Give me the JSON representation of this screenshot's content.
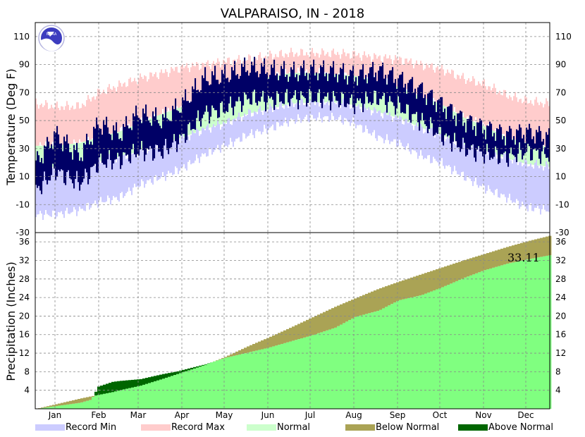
{
  "chart_data": {
    "type": "bar",
    "title": "VALPARAISO, IN - 2018",
    "months": [
      "Jan",
      "Feb",
      "Mar",
      "Apr",
      "May",
      "Jun",
      "Jul",
      "Aug",
      "Sep",
      "Oct",
      "Nov",
      "Dec"
    ],
    "temperature_panel": {
      "ylabel": "Temperature (Deg F)",
      "ylim": [
        -30,
        120
      ],
      "yticks": [
        110,
        90,
        70,
        50,
        30,
        10,
        -10,
        -30
      ],
      "grid": true,
      "series_anchors": {
        "day_of_year": [
          1,
          15,
          32,
          46,
          60,
          74,
          91,
          105,
          121,
          135,
          152,
          166,
          182,
          196,
          213,
          227,
          244,
          258,
          274,
          288,
          305,
          319,
          335,
          349,
          365
        ],
        "record_max": [
          62,
          60,
          60,
          70,
          75,
          80,
          84,
          88,
          90,
          92,
          94,
          96,
          98,
          98,
          98,
          97,
          95,
          94,
          90,
          87,
          80,
          76,
          68,
          64,
          62
        ],
        "normal_high": [
          32,
          32,
          34,
          38,
          42,
          48,
          55,
          60,
          66,
          72,
          78,
          81,
          84,
          84,
          83,
          82,
          78,
          74,
          67,
          62,
          52,
          46,
          38,
          34,
          31
        ],
        "normal_low": [
          17,
          17,
          18,
          21,
          24,
          28,
          34,
          38,
          44,
          48,
          55,
          58,
          62,
          63,
          63,
          61,
          56,
          52,
          45,
          40,
          33,
          29,
          23,
          19,
          17
        ],
        "record_min": [
          -17,
          -17,
          -14,
          -8,
          -5,
          4,
          10,
          16,
          26,
          32,
          40,
          44,
          50,
          52,
          52,
          48,
          38,
          34,
          25,
          20,
          10,
          2,
          -5,
          -12,
          -14
        ],
        "actual_high": [
          20,
          40,
          25,
          48,
          40,
          55,
          50,
          62,
          80,
          82,
          88,
          86,
          84,
          86,
          85,
          82,
          86,
          80,
          72,
          62,
          50,
          45,
          40,
          42,
          38
        ],
        "actual_low": [
          0,
          14,
          5,
          20,
          22,
          28,
          28,
          38,
          55,
          58,
          66,
          64,
          66,
          66,
          65,
          62,
          66,
          60,
          50,
          40,
          30,
          26,
          24,
          28,
          25
        ]
      }
    },
    "precipitation_panel": {
      "ylabel": "Precipitation (Inches)",
      "ylim": [
        0,
        38
      ],
      "yticks": [
        36,
        32,
        28,
        24,
        20,
        16,
        12,
        8,
        4
      ],
      "grid": true,
      "annotation": "33.11",
      "series_anchors": {
        "day_of_year": [
          1,
          32,
          40,
          45,
          55,
          60,
          75,
          91,
          100,
          121,
          135,
          152,
          166,
          182,
          196,
          213,
          227,
          244,
          258,
          274,
          288,
          305,
          319,
          335,
          349,
          365
        ],
        "normal_cumulative": [
          0,
          2.2,
          2.7,
          3.0,
          3.6,
          4.0,
          5.0,
          6.5,
          7.4,
          9.5,
          11.2,
          13.6,
          15.4,
          17.6,
          19.6,
          22.0,
          23.8,
          25.9,
          27.4,
          29.0,
          30.4,
          32.1,
          33.4,
          34.9,
          36.1,
          37.3
        ],
        "actual_cumulative": [
          0,
          1.3,
          2.0,
          4.8,
          5.8,
          6.0,
          6.4,
          7.5,
          8.0,
          9.6,
          11.0,
          12.2,
          13.2,
          14.6,
          15.8,
          17.5,
          19.8,
          21.2,
          23.4,
          24.5,
          26.1,
          28.3,
          29.9,
          31.3,
          32.2,
          33.11
        ]
      }
    },
    "legend": [
      {
        "label": "Record Min",
        "color": "#ccccff"
      },
      {
        "label": "Record Max",
        "color": "#ffcccc"
      },
      {
        "label": "Normal",
        "color": "#ccffcc"
      },
      {
        "label": "Below Normal",
        "color": "#aaa355"
      },
      {
        "label": "Above Normal",
        "color": "#006600"
      }
    ],
    "colors": {
      "actual_temperature": "#000066",
      "observed_precip": "#80ff80",
      "above_normal": "#006600",
      "below_normal": "#aaa355"
    },
    "logo_text": "NOAA"
  }
}
